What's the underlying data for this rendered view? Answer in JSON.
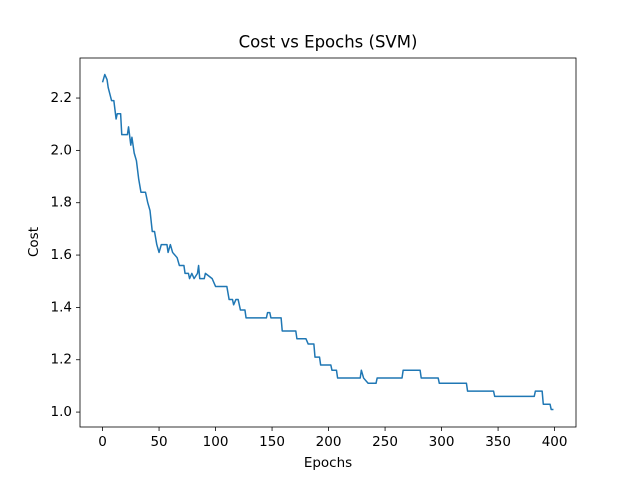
{
  "chart_data": {
    "type": "line",
    "title": "Cost vs Epochs (SVM)",
    "x_label": "Epochs",
    "y_label": "Cost",
    "x": [
      0,
      2,
      4,
      5,
      8,
      10,
      12,
      13,
      16,
      17,
      22,
      23,
      25,
      26,
      28,
      30,
      32,
      34,
      38,
      40,
      42,
      44,
      46,
      48,
      50,
      52,
      57,
      58,
      60,
      62,
      66,
      68,
      72,
      73,
      76,
      77,
      79,
      81,
      84,
      85,
      86,
      90,
      91,
      97,
      100,
      110,
      112,
      115,
      116,
      118,
      120,
      122,
      126,
      127,
      145,
      146,
      148,
      149,
      158,
      159,
      171,
      172,
      180,
      182,
      187,
      188,
      192,
      193,
      202,
      203,
      207,
      208,
      228,
      229,
      231,
      235,
      242,
      243,
      265,
      266,
      281,
      282,
      297,
      298,
      322,
      323,
      346,
      347,
      382,
      383,
      389,
      390,
      396,
      397,
      399
    ],
    "series": [
      {
        "name": "Cost",
        "color": "#1f77b4",
        "values": [
          2.26,
          2.29,
          2.27,
          2.24,
          2.19,
          2.19,
          2.12,
          2.14,
          2.14,
          2.06,
          2.06,
          2.09,
          2.02,
          2.05,
          1.99,
          1.96,
          1.89,
          1.84,
          1.84,
          1.8,
          1.77,
          1.69,
          1.69,
          1.64,
          1.61,
          1.64,
          1.64,
          1.61,
          1.64,
          1.61,
          1.59,
          1.56,
          1.56,
          1.53,
          1.53,
          1.51,
          1.53,
          1.51,
          1.53,
          1.56,
          1.51,
          1.51,
          1.53,
          1.51,
          1.48,
          1.48,
          1.43,
          1.43,
          1.41,
          1.43,
          1.43,
          1.39,
          1.39,
          1.36,
          1.36,
          1.38,
          1.38,
          1.36,
          1.36,
          1.31,
          1.31,
          1.28,
          1.28,
          1.26,
          1.26,
          1.21,
          1.21,
          1.18,
          1.18,
          1.16,
          1.16,
          1.13,
          1.13,
          1.16,
          1.13,
          1.11,
          1.11,
          1.13,
          1.13,
          1.16,
          1.16,
          1.13,
          1.13,
          1.11,
          1.11,
          1.08,
          1.08,
          1.06,
          1.06,
          1.08,
          1.08,
          1.03,
          1.03,
          1.01,
          1.01
        ]
      }
    ],
    "xlim": [
      -19.95,
      418.95
    ],
    "ylim": [
      0.943,
      2.353
    ],
    "xticks": [
      0,
      50,
      100,
      150,
      200,
      250,
      300,
      350,
      400
    ],
    "yticks": [
      {
        "value": 1.0,
        "label": "1.0"
      },
      1.2,
      1.4,
      1.6,
      1.8,
      {
        "value": 2.0,
        "label": "2.0"
      },
      2.2
    ]
  }
}
